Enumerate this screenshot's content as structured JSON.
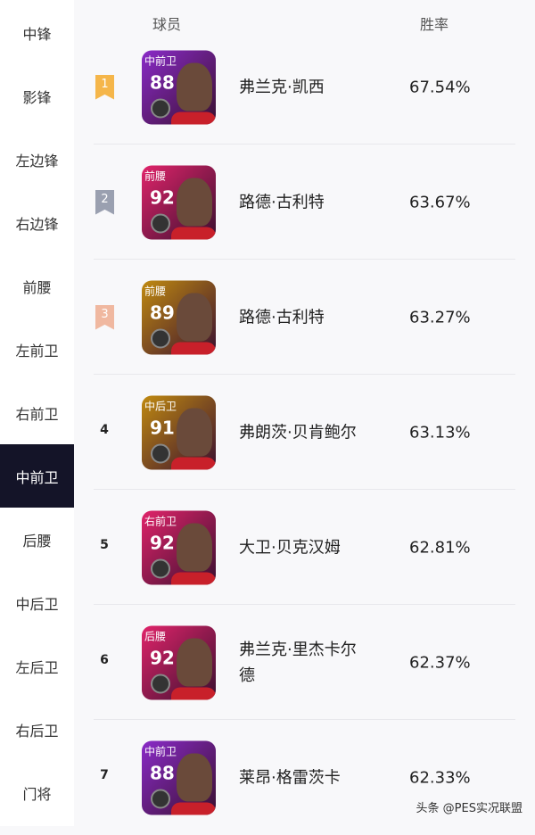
{
  "sidebar": {
    "items": [
      "中锋",
      "影锋",
      "左边锋",
      "右边锋",
      "前腰",
      "左前卫",
      "右前卫",
      "中前卫",
      "后腰",
      "中后卫",
      "左后卫",
      "右后卫",
      "门将"
    ],
    "active": "中前卫"
  },
  "header": {
    "player": "球员",
    "winrate": "胜率"
  },
  "rows": [
    {
      "rank": "1",
      "pos": "中前卫",
      "rating": "88",
      "name": "弗兰克·凯西",
      "winrate": "67.54%",
      "card_color": "#8a2bc8",
      "rank_color": "#f5b64a"
    },
    {
      "rank": "2",
      "pos": "前腰",
      "rating": "92",
      "name": "路德·古利特",
      "winrate": "63.67%",
      "card_color": "#e0246a",
      "rank_color": "#9aa0b0"
    },
    {
      "rank": "3",
      "pos": "前腰",
      "rating": "89",
      "name": "路德·古利特",
      "winrate": "63.27%",
      "card_color": "#c08a10",
      "rank_color": "#f0b8a0"
    },
    {
      "rank": "4",
      "pos": "中后卫",
      "rating": "91",
      "name": "弗朗茨·贝肯鲍尔",
      "winrate": "63.13%",
      "card_color": "#c08a10"
    },
    {
      "rank": "5",
      "pos": "右前卫",
      "rating": "92",
      "name": "大卫·贝克汉姆",
      "winrate": "62.81%",
      "card_color": "#e0246a"
    },
    {
      "rank": "6",
      "pos": "后腰",
      "rating": "92",
      "name": "弗兰克·里杰卡尔德",
      "winrate": "62.37%",
      "card_color": "#e0246a"
    },
    {
      "rank": "7",
      "pos": "中前卫",
      "rating": "88",
      "name": "莱昂·格雷茨卡",
      "winrate": "62.33%",
      "card_color": "#8a2bc8"
    }
  ],
  "watermark": "头条 @PES实况联盟"
}
